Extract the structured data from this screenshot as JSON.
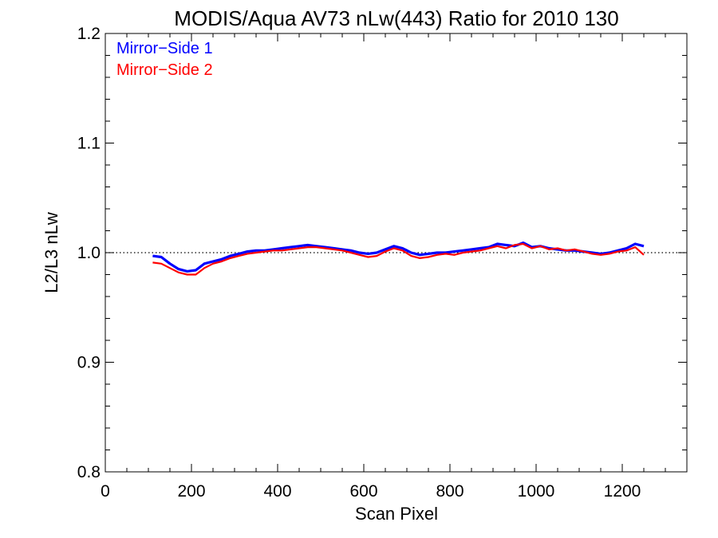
{
  "chart_data": {
    "type": "line",
    "title": "MODIS/Aqua AV73 nLw(443) Ratio for 2010 130",
    "xlabel": "Scan Pixel",
    "ylabel": "L2/L3 nLw",
    "xlim": [
      0,
      1350
    ],
    "ylim": [
      0.8,
      1.2
    ],
    "xticks": [
      0,
      200,
      400,
      600,
      800,
      1000,
      1200
    ],
    "yticks": [
      0.8,
      0.9,
      1.0,
      1.1,
      1.2
    ],
    "xtick_labels": [
      "0",
      "200",
      "400",
      "600",
      "800",
      "1000",
      "1200"
    ],
    "ytick_labels": [
      "0.8",
      "0.9",
      "1.0",
      "1.1",
      "1.2"
    ],
    "reference_line": {
      "y": 1.0,
      "style": "dotted"
    },
    "legend": {
      "placement": "top-left",
      "entries": [
        "Mirror−Side 1",
        "Mirror−Side 2"
      ]
    },
    "series_colors": {
      "mirror_side_1": "#0000ff",
      "mirror_side_2": "#ff0000"
    },
    "x": [
      110,
      130,
      150,
      170,
      190,
      210,
      230,
      250,
      270,
      290,
      310,
      330,
      350,
      370,
      390,
      410,
      430,
      450,
      470,
      490,
      510,
      530,
      550,
      570,
      590,
      610,
      630,
      650,
      670,
      690,
      710,
      730,
      750,
      770,
      790,
      810,
      830,
      850,
      870,
      890,
      910,
      930,
      950,
      970,
      990,
      1010,
      1030,
      1050,
      1070,
      1090,
      1110,
      1130,
      1150,
      1170,
      1190,
      1210,
      1230,
      1250
    ],
    "series": [
      {
        "name": "Mirror−Side 1",
        "values": [
          0.997,
          0.996,
          0.99,
          0.985,
          0.983,
          0.984,
          0.99,
          0.992,
          0.994,
          0.997,
          0.999,
          1.001,
          1.002,
          1.002,
          1.003,
          1.004,
          1.005,
          1.006,
          1.007,
          1.006,
          1.005,
          1.004,
          1.003,
          1.002,
          1.0,
          0.999,
          1.0,
          1.003,
          1.006,
          1.004,
          1.0,
          0.998,
          0.999,
          1.0,
          1.0,
          1.001,
          1.002,
          1.003,
          1.004,
          1.005,
          1.008,
          1.007,
          1.006,
          1.009,
          1.005,
          1.006,
          1.004,
          1.003,
          1.002,
          1.002,
          1.001,
          1.0,
          0.999,
          1.0,
          1.002,
          1.004,
          1.008,
          1.006
        ]
      },
      {
        "name": "Mirror−Side 2",
        "values": [
          0.991,
          0.99,
          0.986,
          0.982,
          0.98,
          0.98,
          0.986,
          0.99,
          0.992,
          0.995,
          0.997,
          0.999,
          1.0,
          1.001,
          1.002,
          1.002,
          1.003,
          1.004,
          1.005,
          1.005,
          1.004,
          1.003,
          1.002,
          1.0,
          0.998,
          0.996,
          0.997,
          1.001,
          1.004,
          1.002,
          0.997,
          0.995,
          0.996,
          0.998,
          0.999,
          0.998,
          1.0,
          1.001,
          1.002,
          1.004,
          1.006,
          1.004,
          1.007,
          1.008,
          1.004,
          1.006,
          1.003,
          1.004,
          1.002,
          1.003,
          1.001,
          0.999,
          0.998,
          0.999,
          1.001,
          1.002,
          1.005,
          0.998
        ]
      }
    ]
  }
}
